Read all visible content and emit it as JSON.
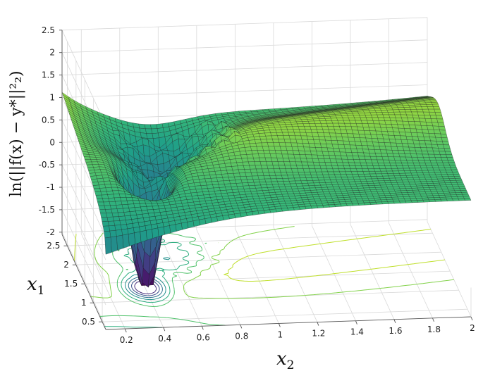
{
  "chart_data": {
    "type": "surface",
    "title": "",
    "zlabel": "ln(||f(x) − y*||²₂)",
    "xlabel_main": "x",
    "xlabel_sub": "2",
    "ylabel_main": "x",
    "ylabel_sub": "1",
    "zlim": [
      -2,
      2.5
    ],
    "z_ticks": [
      "2.5",
      "2",
      "1.5",
      "1",
      "0.5",
      "0",
      "-0.5",
      "-1",
      "-1.5",
      "-2"
    ],
    "x2_ticks": [
      "0.2",
      "0.4",
      "0.6",
      "0.8",
      "1",
      "1.2",
      "1.4",
      "1.6",
      "1.8",
      "2"
    ],
    "x1_ticks": [
      "2.5",
      "2",
      "1.5",
      "1",
      "0.5"
    ],
    "x2_range": [
      0.1,
      2
    ],
    "x1_range": [
      0.3,
      2.8
    ],
    "colormap": "viridis",
    "grid": true,
    "contour_projection": true
  }
}
